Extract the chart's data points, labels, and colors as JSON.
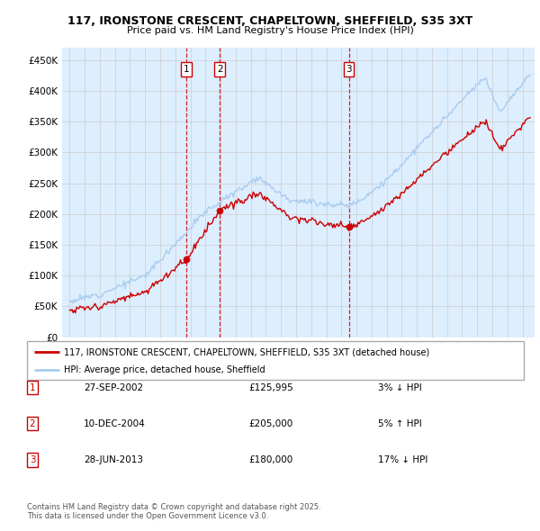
{
  "title": "117, IRONSTONE CRESCENT, CHAPELTOWN, SHEFFIELD, S35 3XT",
  "subtitle": "Price paid vs. HM Land Registry's House Price Index (HPI)",
  "ylim": [
    0,
    470000
  ],
  "yticks": [
    0,
    50000,
    100000,
    150000,
    200000,
    250000,
    300000,
    350000,
    400000,
    450000
  ],
  "ytick_labels": [
    "£0",
    "£50K",
    "£100K",
    "£150K",
    "£200K",
    "£250K",
    "£300K",
    "£350K",
    "£400K",
    "£450K"
  ],
  "xlim_start": 1994.5,
  "xlim_end": 2025.8,
  "transactions": [
    {
      "date": "27-SEP-2002",
      "year": 2002.74,
      "price": 125995,
      "label": "1",
      "rel": "3% ↓ HPI"
    },
    {
      "date": "10-DEC-2004",
      "year": 2004.94,
      "price": 205000,
      "label": "2",
      "rel": "5% ↑ HPI"
    },
    {
      "date": "28-JUN-2013",
      "year": 2013.49,
      "price": 180000,
      "label": "3",
      "rel": "17% ↓ HPI"
    }
  ],
  "legend_line1": "117, IRONSTONE CRESCENT, CHAPELTOWN, SHEFFIELD, S35 3XT (detached house)",
  "legend_line2": "HPI: Average price, detached house, Sheffield",
  "footer": "Contains HM Land Registry data © Crown copyright and database right 2025.\nThis data is licensed under the Open Government Licence v3.0.",
  "red_color": "#cc0000",
  "blue_color": "#aaccee",
  "bg_color": "#ddeeff",
  "grid_color": "#cccccc",
  "table_rows": [
    [
      "1",
      "27-SEP-2002",
      "£125,995",
      "3% ↓ HPI"
    ],
    [
      "2",
      "10-DEC-2004",
      "£205,000",
      "5% ↑ HPI"
    ],
    [
      "3",
      "28-JUN-2013",
      "£180,000",
      "17% ↓ HPI"
    ]
  ]
}
